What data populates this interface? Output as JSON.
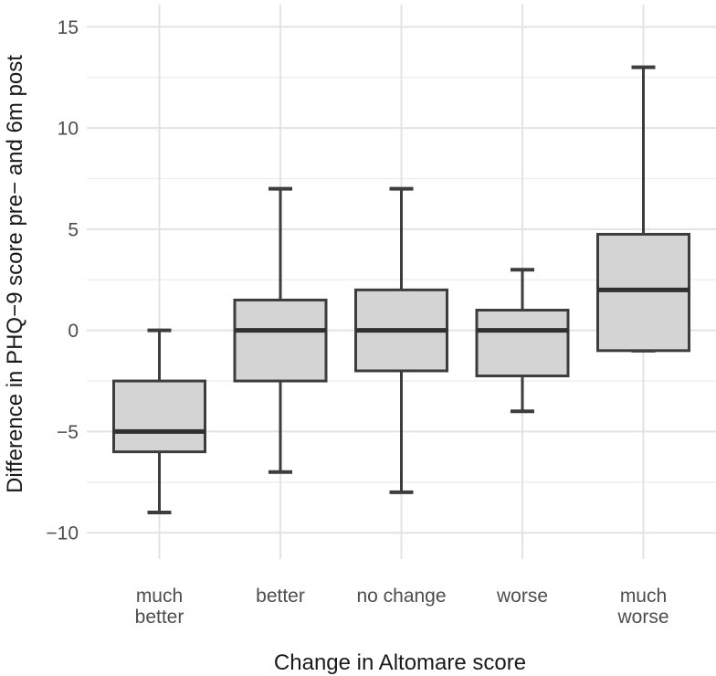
{
  "figure": {
    "background": "#ffffff"
  },
  "chart_data": {
    "type": "boxplot",
    "title": "",
    "xlabel": "Change in Altomare score",
    "ylabel": "Difference in PHQ−9 score pre− and 6m post",
    "categories": [
      {
        "name": "much better",
        "label_lines": [
          "much",
          "better"
        ]
      },
      {
        "name": "better",
        "label_lines": [
          "better"
        ]
      },
      {
        "name": "no change",
        "label_lines": [
          "no change"
        ]
      },
      {
        "name": "worse",
        "label_lines": [
          "worse"
        ]
      },
      {
        "name": "much worse",
        "label_lines": [
          "much",
          "worse"
        ]
      }
    ],
    "series": [
      {
        "name": "much better",
        "whisker_low": -9,
        "q1": -6,
        "median": -5,
        "q3": -2.5,
        "whisker_high": 0
      },
      {
        "name": "better",
        "whisker_low": -7,
        "q1": -2.5,
        "median": 0,
        "q3": 1.5,
        "whisker_high": 7
      },
      {
        "name": "no change",
        "whisker_low": -8,
        "q1": -2,
        "median": 0,
        "q3": 2,
        "whisker_high": 7
      },
      {
        "name": "worse",
        "whisker_low": -4,
        "q1": -2.25,
        "median": 0,
        "q3": 1,
        "whisker_high": 3
      },
      {
        "name": "much worse",
        "whisker_low": -1,
        "q1": -1,
        "median": 2,
        "q3": 4.75,
        "whisker_high": 13
      }
    ],
    "y_axis": {
      "ticks": [
        {
          "value": 15,
          "label": "15"
        },
        {
          "value": 10,
          "label": "10"
        },
        {
          "value": 5,
          "label": "5"
        },
        {
          "value": 0,
          "label": "0"
        },
        {
          "value": -5,
          "label": "−5"
        },
        {
          "value": -10,
          "label": "−10"
        }
      ],
      "minor_ticks": [
        12.5,
        7.5,
        2.5,
        -2.5,
        -7.5
      ],
      "range": [
        -11.3,
        16.1
      ]
    },
    "grid": "major+minor",
    "legend": false,
    "colors": {
      "box_fill": "#d4d4d4",
      "box_border": "#3d3d3d",
      "median": "#303030",
      "grid_major": "#e3e3e3",
      "grid_minor": "#ededed",
      "tick_label": "#4d4d4d",
      "axis_title": "#1a1a1a"
    }
  }
}
